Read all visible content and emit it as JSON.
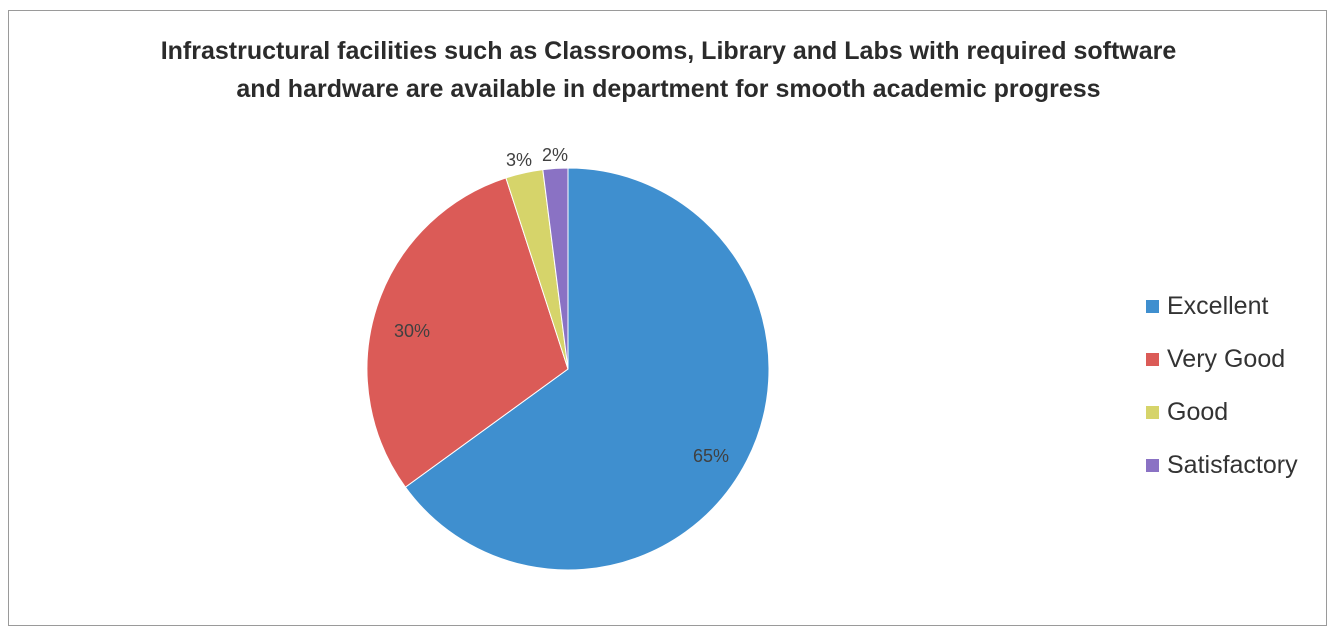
{
  "chart_data": {
    "type": "pie",
    "title_lines": [
      "Infrastructural facilities such as Classrooms, Library and Labs with required software",
      "and hardware are available in department for smooth academic progress"
    ],
    "legend_position": "right",
    "slices": [
      {
        "label": "Excellent",
        "value": 65,
        "data_label": "65%",
        "color": "#3f8fcf"
      },
      {
        "label": "Very Good",
        "value": 30,
        "data_label": "30%",
        "color": "#db5b57"
      },
      {
        "label": "Good",
        "value": 3,
        "data_label": "3%",
        "color": "#d6d46a"
      },
      {
        "label": "Satisfactory",
        "value": 2,
        "data_label": "2%",
        "color": "#8a72c4"
      }
    ]
  }
}
